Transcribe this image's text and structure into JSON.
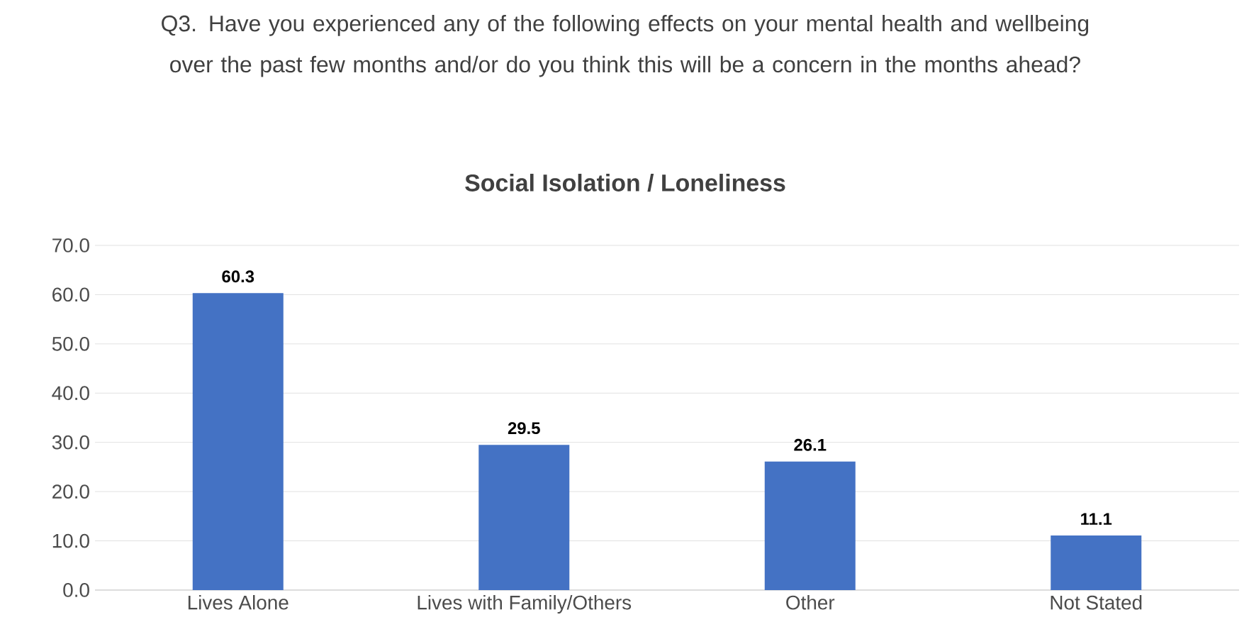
{
  "chart_data": {
    "type": "bar",
    "title": "Q3. Have you experienced any of the following effects on your mental health and wellbeing over the past few months and/or do you think this will be a concern in the months ahead?",
    "subtitle": "Social Isolation / Loneliness",
    "categories": [
      "Lives Alone",
      "Lives with Family/Others",
      "Other",
      "Not Stated"
    ],
    "values": [
      60.3,
      29.5,
      26.1,
      11.1
    ],
    "color": "#4472c4",
    "ylim": [
      0,
      70
    ],
    "yticks": [
      {
        "value": 0,
        "label": "0.0"
      },
      {
        "value": 10,
        "label": "10.0"
      },
      {
        "value": 20,
        "label": "20.0"
      },
      {
        "value": 30,
        "label": "30.0"
      },
      {
        "value": 40,
        "label": "40.0"
      },
      {
        "value": 50,
        "label": "50.0"
      },
      {
        "value": 60,
        "label": "60.0"
      },
      {
        "value": 70,
        "label": "70.0"
      }
    ],
    "grid": "y",
    "data_labels": true
  }
}
